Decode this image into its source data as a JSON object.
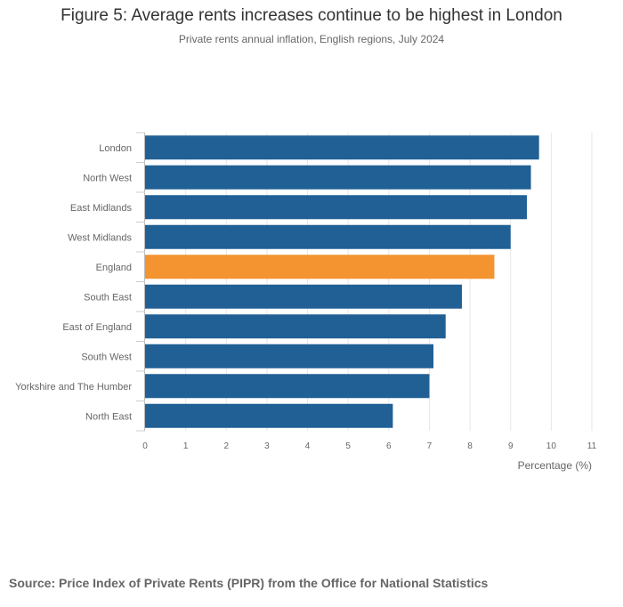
{
  "chart_data": {
    "type": "bar",
    "orientation": "horizontal",
    "title": "Figure 5: Average rents increases continue to be highest in London",
    "subtitle": "Private rents annual inflation, English regions, July 2024",
    "xlabel": "Percentage (%)",
    "categories": [
      "London",
      "North West",
      "East Midlands",
      "West Midlands",
      "England",
      "South East",
      "East of England",
      "South West",
      "Yorkshire and The Humber",
      "North East"
    ],
    "values": [
      9.7,
      9.5,
      9.4,
      9.0,
      8.6,
      7.8,
      7.4,
      7.1,
      7.0,
      6.1
    ],
    "highlight": "England",
    "colors": {
      "default": "#206095",
      "highlight": "#F39431",
      "grid": "#e6e6e6",
      "tick_text": "#666666"
    },
    "xlim": [
      0,
      11
    ],
    "xticks": [
      "0",
      "1",
      "2",
      "3",
      "4",
      "5",
      "6",
      "7",
      "8",
      "9",
      "10",
      "11"
    ],
    "grid": true
  },
  "source": "Source: Price Index of Private Rents (PIPR) from the Office for National Statistics"
}
